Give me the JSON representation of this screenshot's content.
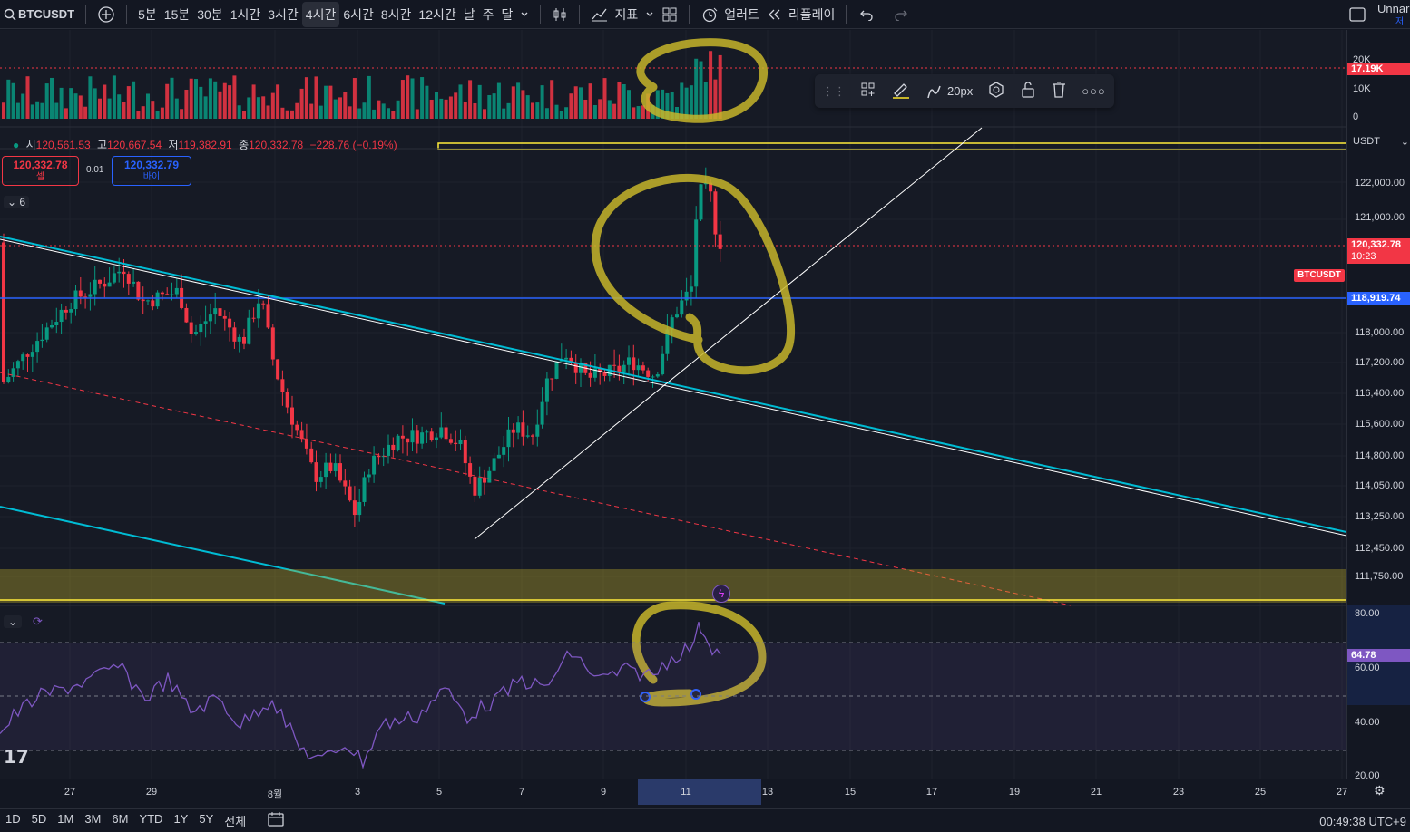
{
  "toolbar": {
    "symbol": "BTCUSDT",
    "intervals": [
      "5분",
      "15분",
      "30분",
      "1시간",
      "3시간",
      "4시간",
      "6시간",
      "8시간",
      "12시간",
      "날",
      "주",
      "달"
    ],
    "active_interval": "4시간",
    "indicators_label": "지표",
    "alert_label": "얼러트",
    "replay_label": "리플레이",
    "layout_name": "Unnar",
    "save_label": "저장"
  },
  "legend": {
    "open_label": "시",
    "open": "120,561.53",
    "high_label": "고",
    "high": "120,667.54",
    "low_label": "저",
    "low": "119,382.91",
    "close_label": "종",
    "close": "120,332.78",
    "change": "−228.76 (−0.19%)"
  },
  "trade": {
    "sell_price": "120,332.78",
    "sell_label": "셀",
    "spread": "0.01",
    "buy_price": "120,332.79",
    "buy_label": "바이"
  },
  "collapse_count": "6",
  "draw_toolbar": {
    "width_label": "20px"
  },
  "price_axis": {
    "currency": "USDT",
    "volume_labels": [
      "20K",
      "10K",
      "0"
    ],
    "volume_tag": "17.19K",
    "labels": [
      "122,000.00",
      "121,000.00",
      "118,000.00",
      "117,200.00",
      "116,400.00",
      "115,600.00",
      "114,800.00",
      "114,050.00",
      "113,250.00",
      "112,450.00",
      "111,750.00"
    ],
    "last_price": "120,332.78",
    "countdown": "10:23",
    "hline_price": "118,919.74",
    "rsi_labels": [
      "80.00",
      "60.00",
      "40.00",
      "20.00"
    ],
    "rsi_value": "64.78",
    "symbol_tag": "BTCUSDT"
  },
  "time_axis": {
    "labels": [
      "27",
      "29",
      "8월",
      "3",
      "5",
      "7",
      "9",
      "11",
      "13",
      "15",
      "17",
      "19",
      "21",
      "23",
      "25",
      "27"
    ]
  },
  "bottombar": {
    "ranges": [
      "1D",
      "5D",
      "1M",
      "3M",
      "6M",
      "YTD",
      "1Y",
      "5Y",
      "전체"
    ],
    "clock": "00:49:38 UTC+9"
  },
  "colors": {
    "up": "#089981",
    "down": "#f23645",
    "hline": "#2962ff",
    "trend": "#00bcd4",
    "highlight": "#ffeb3b",
    "rsi": "#7e57c2"
  }
}
